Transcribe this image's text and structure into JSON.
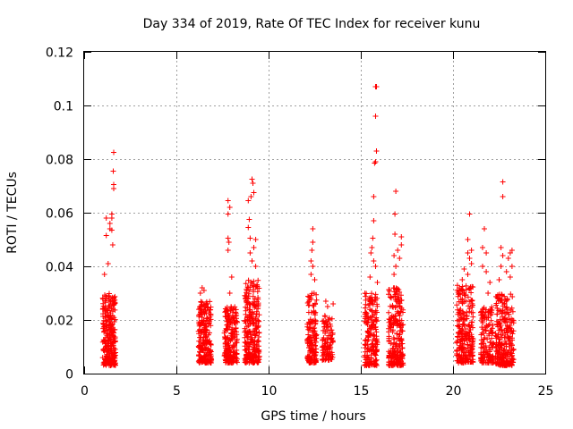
{
  "chart_data": {
    "type": "scatter",
    "title": "Day 334 of 2019, Rate Of TEC Index for receiver kunu",
    "xlabel": "GPS time / hours",
    "ylabel": "ROTI / TECUs",
    "xlim": [
      0,
      25
    ],
    "ylim": [
      0,
      0.12
    ],
    "xticks": [
      0,
      5,
      10,
      15,
      20,
      25
    ],
    "xtick_labels": [
      "0",
      "5",
      "10",
      "15",
      "20",
      "25"
    ],
    "yticks": [
      0,
      0.02,
      0.04,
      0.06,
      0.08,
      0.1,
      0.12
    ],
    "ytick_labels": [
      "0",
      "0.02",
      "0.04",
      "0.06",
      "0.08",
      "0.1",
      "0.12"
    ],
    "grid": true,
    "marker": "+",
    "color": "#ff0000",
    "clusters": [
      {
        "x_range": [
          1.0,
          1.7
        ],
        "y_range": [
          0.003,
          0.03
        ],
        "n": 260,
        "tail": [
          [
            1.2,
            0.058
          ],
          [
            1.5,
            0.058
          ],
          [
            1.6,
            0.0825
          ],
          [
            1.58,
            0.0755
          ],
          [
            1.6,
            0.0705
          ],
          [
            1.6,
            0.069
          ],
          [
            1.2,
            0.0515
          ],
          [
            1.4,
            0.054
          ],
          [
            1.5,
            0.0535
          ],
          [
            1.3,
            0.041
          ],
          [
            1.55,
            0.048
          ],
          [
            1.1,
            0.037
          ],
          [
            1.4,
            0.056
          ],
          [
            1.5,
            0.0595
          ]
        ]
      },
      {
        "x_range": [
          6.2,
          6.9
        ],
        "y_range": [
          0.004,
          0.027
        ],
        "n": 220,
        "tail": [
          [
            6.4,
            0.032
          ],
          [
            6.5,
            0.031
          ],
          [
            6.3,
            0.03
          ]
        ]
      },
      {
        "x_range": [
          7.6,
          8.3
        ],
        "y_range": [
          0.004,
          0.025
        ],
        "n": 200,
        "tail": [
          [
            7.8,
            0.0645
          ],
          [
            7.9,
            0.062
          ],
          [
            7.8,
            0.0595
          ],
          [
            7.8,
            0.0505
          ],
          [
            7.85,
            0.049
          ],
          [
            7.8,
            0.046
          ],
          [
            8.0,
            0.036
          ],
          [
            7.9,
            0.03
          ]
        ]
      },
      {
        "x_range": [
          8.7,
          9.5
        ],
        "y_range": [
          0.004,
          0.035
        ],
        "n": 260,
        "tail": [
          [
            9.1,
            0.0725
          ],
          [
            9.15,
            0.071
          ],
          [
            9.2,
            0.0675
          ],
          [
            9.05,
            0.066
          ],
          [
            8.9,
            0.0645
          ],
          [
            8.95,
            0.0575
          ],
          [
            8.9,
            0.0545
          ],
          [
            9.0,
            0.0505
          ],
          [
            9.3,
            0.05
          ],
          [
            9.2,
            0.047
          ],
          [
            9.0,
            0.045
          ],
          [
            9.1,
            0.042
          ],
          [
            9.3,
            0.04
          ]
        ]
      },
      {
        "x_range": [
          12.1,
          12.6
        ],
        "y_range": [
          0.004,
          0.03
        ],
        "n": 150,
        "tail": [
          [
            12.4,
            0.054
          ],
          [
            12.4,
            0.049
          ],
          [
            12.35,
            0.046
          ],
          [
            12.3,
            0.042
          ],
          [
            12.4,
            0.04
          ],
          [
            12.3,
            0.037
          ],
          [
            12.5,
            0.035
          ]
        ]
      },
      {
        "x_range": [
          12.9,
          13.5
        ],
        "y_range": [
          0.005,
          0.022
        ],
        "n": 100,
        "tail": [
          [
            13.1,
            0.027
          ],
          [
            13.5,
            0.026
          ],
          [
            13.2,
            0.025
          ]
        ]
      },
      {
        "x_range": [
          15.2,
          15.9
        ],
        "y_range": [
          0.003,
          0.03
        ],
        "n": 200,
        "tail": [
          [
            15.85,
            0.107
          ],
          [
            15.8,
            0.107
          ],
          [
            15.8,
            0.096
          ],
          [
            15.85,
            0.083
          ],
          [
            15.75,
            0.0785
          ],
          [
            15.8,
            0.079
          ],
          [
            15.7,
            0.066
          ],
          [
            15.7,
            0.057
          ],
          [
            15.65,
            0.0505
          ],
          [
            15.6,
            0.047
          ],
          [
            15.55,
            0.045
          ],
          [
            15.7,
            0.042
          ],
          [
            15.8,
            0.04
          ],
          [
            15.5,
            0.036
          ],
          [
            15.9,
            0.034
          ]
        ]
      },
      {
        "x_range": [
          16.5,
          17.3
        ],
        "y_range": [
          0.003,
          0.032
        ],
        "n": 240,
        "tail": [
          [
            16.9,
            0.068
          ],
          [
            16.85,
            0.0595
          ],
          [
            16.85,
            0.052
          ],
          [
            17.2,
            0.051
          ],
          [
            17.2,
            0.048
          ],
          [
            17.0,
            0.046
          ],
          [
            16.8,
            0.044
          ],
          [
            17.1,
            0.043
          ],
          [
            16.9,
            0.04
          ],
          [
            16.8,
            0.037
          ]
        ]
      },
      {
        "x_range": [
          20.2,
          21.1
        ],
        "y_range": [
          0.004,
          0.033
        ],
        "n": 240,
        "tail": [
          [
            20.9,
            0.0595
          ],
          [
            20.8,
            0.05
          ],
          [
            21.0,
            0.046
          ],
          [
            20.8,
            0.045
          ],
          [
            20.9,
            0.043
          ],
          [
            21.0,
            0.041
          ],
          [
            20.6,
            0.039
          ],
          [
            20.8,
            0.037
          ],
          [
            20.5,
            0.035
          ]
        ]
      },
      {
        "x_range": [
          21.5,
          22.2
        ],
        "y_range": [
          0.004,
          0.025
        ],
        "n": 140,
        "tail": [
          [
            21.7,
            0.054
          ],
          [
            21.6,
            0.047
          ],
          [
            21.8,
            0.045
          ],
          [
            21.6,
            0.04
          ],
          [
            21.8,
            0.038
          ],
          [
            22.0,
            0.034
          ],
          [
            21.9,
            0.03
          ]
        ]
      },
      {
        "x_range": [
          22.3,
          23.3
        ],
        "y_range": [
          0.003,
          0.03
        ],
        "n": 260,
        "tail": [
          [
            22.7,
            0.0715
          ],
          [
            22.7,
            0.066
          ],
          [
            22.6,
            0.047
          ],
          [
            22.7,
            0.044
          ],
          [
            22.6,
            0.04
          ],
          [
            23.2,
            0.046
          ],
          [
            23.1,
            0.045
          ],
          [
            23.0,
            0.043
          ],
          [
            23.2,
            0.04
          ],
          [
            22.9,
            0.038
          ],
          [
            23.1,
            0.036
          ],
          [
            22.5,
            0.035
          ]
        ]
      }
    ]
  }
}
